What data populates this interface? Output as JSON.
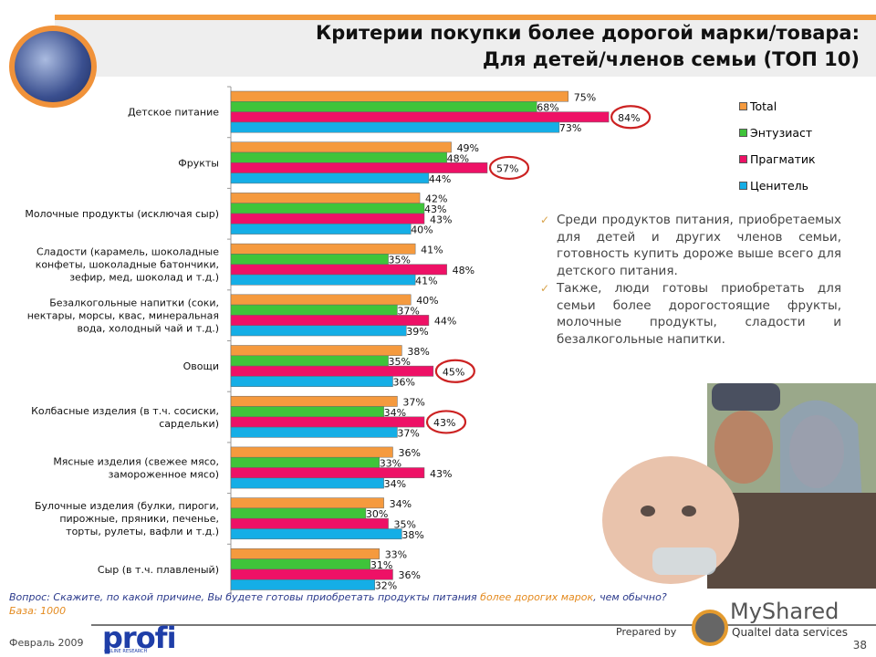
{
  "header": {
    "title_line1": "Критерии покупки более дорогой марки/товара:",
    "title_line2": "Для детей/членов семьи (ТОП 10)"
  },
  "chart_data": {
    "type": "bar",
    "orientation": "horizontal",
    "categories": [
      "Детское питание",
      "Фрукты",
      "Молочные продукты (исключая сыр)",
      "Сладости (карамель, шоколадные конфеты, шоколадные батончики, зефир, мед, шоколад и т.д.)",
      "Безалкогольные напитки (соки, нектары, морсы, квас, минеральная вода, холодный чай и т.д.)",
      "Овощи",
      "Колбасные изделия (в т.ч. сосиски, сардельки)",
      "Мясные изделия (свежее мясо, замороженное мясо)",
      "Булочные изделия (булки, пироги, пирожные, пряники, печенье, торты, рулеты, вафли  и т.д.)",
      "Сыр (в т.ч. плавленый)"
    ],
    "category_lines": [
      [
        "Детское питание"
      ],
      [
        "Фрукты"
      ],
      [
        "Молочные продукты (исключая сыр)"
      ],
      [
        "Сладости (карамель, шоколадные",
        "конфеты, шоколадные батончики,",
        "зефир, мед, шоколад и т.д.)"
      ],
      [
        "Безалкогольные напитки (соки,",
        "нектары, морсы, квас, минеральная",
        "вода, холодный чай и т.д.)"
      ],
      [
        "Овощи"
      ],
      [
        "Колбасные изделия (в т.ч. сосиски,",
        "сардельки)"
      ],
      [
        "Мясные изделия (свежее мясо,",
        "замороженное мясо)"
      ],
      [
        "Булочные изделия (булки, пироги,",
        "пирожные, пряники, печенье,",
        "торты, рулеты, вафли  и т.д.)"
      ],
      [
        "Сыр (в т.ч. плавленый)"
      ]
    ],
    "series": [
      {
        "name": "Total",
        "color": "#f59a3e",
        "values": [
          75,
          49,
          42,
          41,
          40,
          38,
          37,
          36,
          34,
          33
        ]
      },
      {
        "name": "Энтузиаст",
        "color": "#3fc43a",
        "values": [
          68,
          48,
          43,
          35,
          37,
          35,
          34,
          33,
          30,
          31
        ]
      },
      {
        "name": "Прагматик",
        "color": "#ee1166",
        "values": [
          84,
          57,
          43,
          48,
          44,
          45,
          43,
          43,
          35,
          36
        ]
      },
      {
        "name": "Ценитель",
        "color": "#15aee6",
        "values": [
          73,
          44,
          40,
          41,
          39,
          36,
          37,
          34,
          38,
          32
        ]
      }
    ],
    "value_suffix": "%",
    "highlighted": [
      {
        "series": "Прагматик",
        "category": "Детское питание"
      },
      {
        "series": "Прагматик",
        "category": "Фрукты"
      },
      {
        "series": "Прагматик",
        "category": "Овощи"
      },
      {
        "series": "Прагматик",
        "category": "Колбасные изделия (в т.ч. сосиски, сардельки)"
      }
    ],
    "highlight_color": "#cc2222",
    "xlim": [
      0,
      100
    ],
    "legend_position": "right",
    "grid": false
  },
  "bullets": [
    "Среди продуктов питания, приобретаемых для детей и других членов семьи, готовность купить дороже выше всего для детского питания.",
    "Также, люди готовы приобретать для семьи более дорогостоящие фрукты, молочные продукты, сладости и безалкогольные напитки."
  ],
  "footer": {
    "question_prefix": "Вопрос: Скажите, по какой причине, Вы будете готовы приобретать продукты питания ",
    "question_highlight": "более дорогих марок",
    "question_suffix": ", чем обычно?",
    "base": "База: 1000",
    "date": "Февраль 2009",
    "profi_logo": "profi",
    "profi_sub": "ONLINE RESEARCH",
    "prepared_by": "Prepared by",
    "company": "Qualtel data services",
    "watermark": "MyShared",
    "page_number": "38"
  }
}
